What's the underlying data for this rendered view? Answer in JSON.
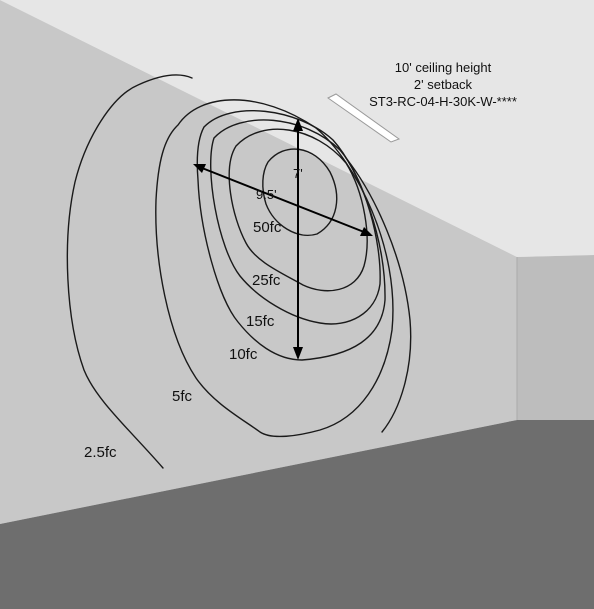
{
  "info": {
    "line1": "10' ceiling height",
    "line2": "2' setback",
    "line3": "ST3-RC-04-H-30K-W-****"
  },
  "dimensions": {
    "vertical": "7'",
    "horizontal": "9.5'"
  },
  "contours": [
    {
      "id": "50fc",
      "label": "50fc"
    },
    {
      "id": "25fc",
      "label": "25fc"
    },
    {
      "id": "15fc",
      "label": "15fc"
    },
    {
      "id": "10fc",
      "label": "10fc"
    },
    {
      "id": "5fc",
      "label": "5fc"
    },
    {
      "id": "2-5fc",
      "label": "2.5fc"
    }
  ],
  "colors": {
    "wall": "#c8c8c8",
    "ceiling": "#e6e6e6",
    "side_wall": "#bdbdbd",
    "floor": "#6e6e6e",
    "fixture": "#ffffff",
    "line": "#1a1a1a"
  }
}
